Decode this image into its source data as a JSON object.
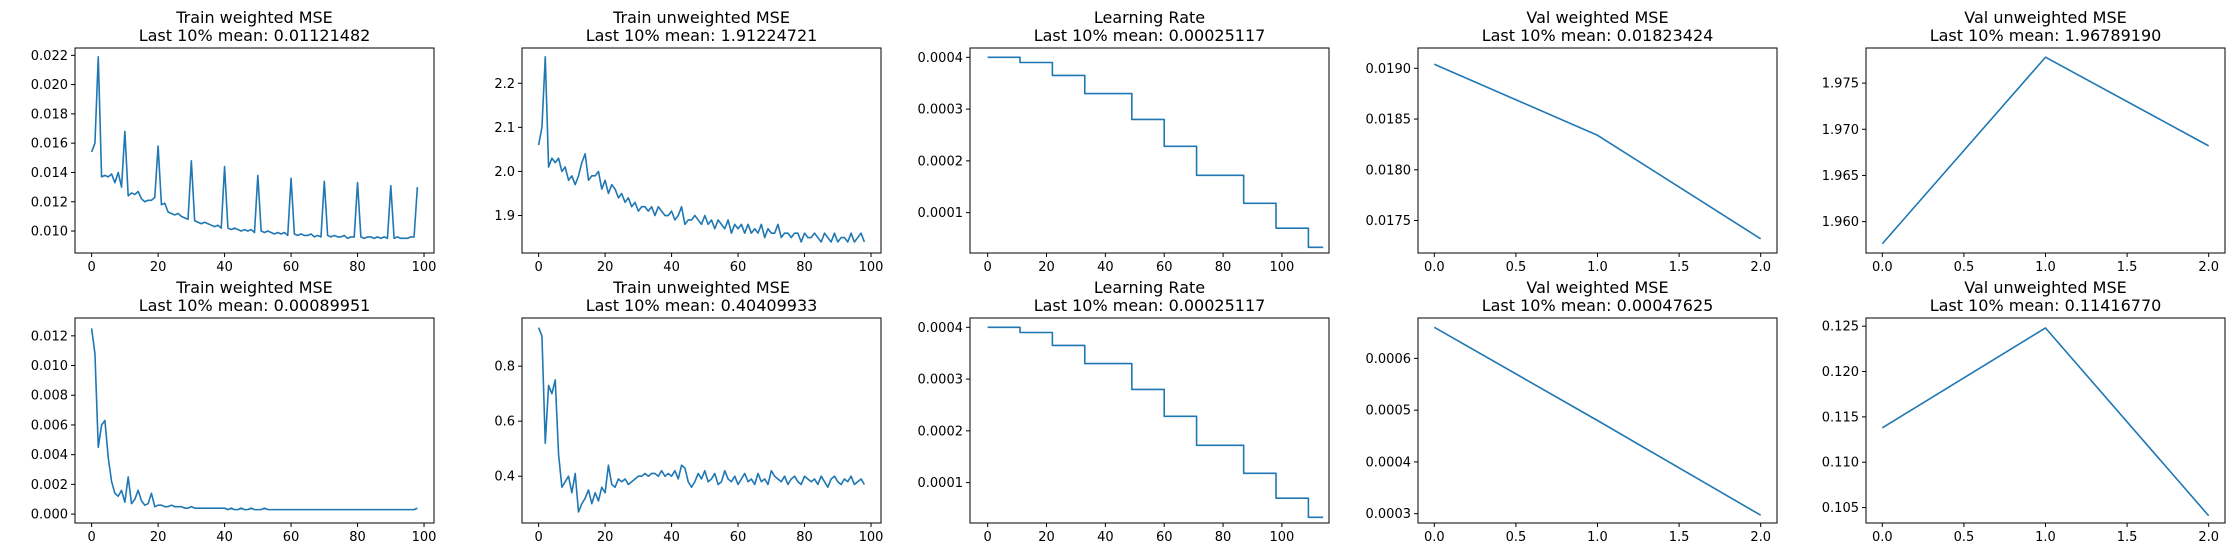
{
  "figure": {
    "line_color": "#1f77b4"
  },
  "chart_data": [
    {
      "type": "line",
      "title": "Train weighted MSE",
      "subtitle": "Last 10% mean: 0.01121482",
      "xlim": [
        -5,
        103
      ],
      "ylim": [
        0.0085,
        0.0225
      ],
      "xticks": [
        0,
        20,
        40,
        60,
        80,
        100
      ],
      "xtick_labels": [
        "0",
        "20",
        "40",
        "60",
        "80",
        "100"
      ],
      "yticks": [
        0.01,
        0.012,
        0.014,
        0.016,
        0.018,
        0.02,
        0.022
      ],
      "ytick_labels": [
        "0.010",
        "0.012",
        "0.014",
        "0.016",
        "0.018",
        "0.020",
        "0.022"
      ],
      "x": [
        0,
        1,
        2,
        3,
        4,
        5,
        6,
        7,
        8,
        9,
        10,
        11,
        12,
        13,
        14,
        15,
        16,
        17,
        18,
        19,
        20,
        21,
        22,
        23,
        24,
        25,
        26,
        27,
        28,
        29,
        30,
        31,
        32,
        33,
        34,
        35,
        36,
        37,
        38,
        39,
        40,
        41,
        42,
        43,
        44,
        45,
        46,
        47,
        48,
        49,
        50,
        51,
        52,
        53,
        54,
        55,
        56,
        57,
        58,
        59,
        60,
        61,
        62,
        63,
        64,
        65,
        66,
        67,
        68,
        69,
        70,
        71,
        72,
        73,
        74,
        75,
        76,
        77,
        78,
        79,
        80,
        81,
        82,
        83,
        84,
        85,
        86,
        87,
        88,
        89,
        90,
        91,
        92,
        93,
        94,
        95,
        96,
        97,
        98
      ],
      "y": [
        0.0154,
        0.016,
        0.0219,
        0.0137,
        0.0138,
        0.0137,
        0.0139,
        0.0133,
        0.014,
        0.013,
        0.0168,
        0.0124,
        0.0126,
        0.0125,
        0.0127,
        0.0122,
        0.012,
        0.0121,
        0.0121,
        0.0123,
        0.0158,
        0.0118,
        0.0119,
        0.0113,
        0.0112,
        0.0111,
        0.0112,
        0.011,
        0.0109,
        0.0108,
        0.0148,
        0.0107,
        0.0106,
        0.0105,
        0.0106,
        0.0105,
        0.0104,
        0.0103,
        0.0104,
        0.0102,
        0.0144,
        0.0102,
        0.0101,
        0.0102,
        0.0101,
        0.01,
        0.0101,
        0.01,
        0.0101,
        0.0099,
        0.0138,
        0.01,
        0.0099,
        0.01,
        0.0099,
        0.0098,
        0.0099,
        0.0098,
        0.0099,
        0.0097,
        0.0136,
        0.0098,
        0.0097,
        0.0098,
        0.0097,
        0.0097,
        0.0098,
        0.0096,
        0.0097,
        0.0096,
        0.0134,
        0.0097,
        0.0096,
        0.0097,
        0.0096,
        0.0096,
        0.0097,
        0.0095,
        0.0096,
        0.0096,
        0.0133,
        0.0096,
        0.0095,
        0.0096,
        0.0096,
        0.0095,
        0.0096,
        0.0095,
        0.0096,
        0.0095,
        0.0131,
        0.0095,
        0.0096,
        0.0095,
        0.0095,
        0.0095,
        0.0096,
        0.0096,
        0.013
      ]
    },
    {
      "type": "line",
      "title": "Train unweighted MSE",
      "subtitle": "Last 10% mean: 1.91224721",
      "xlim": [
        -5,
        103
      ],
      "ylim": [
        1.815,
        2.28
      ],
      "xticks": [
        0,
        20,
        40,
        60,
        80,
        100
      ],
      "xtick_labels": [
        "0",
        "20",
        "40",
        "60",
        "80",
        "100"
      ],
      "yticks": [
        1.9,
        2.0,
        2.1,
        2.2
      ],
      "ytick_labels": [
        "1.9",
        "2.0",
        "2.1",
        "2.2"
      ],
      "x": [
        0,
        1,
        2,
        3,
        4,
        5,
        6,
        7,
        8,
        9,
        10,
        11,
        12,
        13,
        14,
        15,
        16,
        17,
        18,
        19,
        20,
        21,
        22,
        23,
        24,
        25,
        26,
        27,
        28,
        29,
        30,
        31,
        32,
        33,
        34,
        35,
        36,
        37,
        38,
        39,
        40,
        41,
        42,
        43,
        44,
        45,
        46,
        47,
        48,
        49,
        50,
        51,
        52,
        53,
        54,
        55,
        56,
        57,
        58,
        59,
        60,
        61,
        62,
        63,
        64,
        65,
        66,
        67,
        68,
        69,
        70,
        71,
        72,
        73,
        74,
        75,
        76,
        77,
        78,
        79,
        80,
        81,
        82,
        83,
        84,
        85,
        86,
        87,
        88,
        89,
        90,
        91,
        92,
        93,
        94,
        95,
        96,
        97,
        98
      ],
      "y": [
        2.06,
        2.1,
        2.26,
        2.01,
        2.03,
        2.02,
        2.03,
        2.0,
        2.01,
        1.98,
        1.99,
        1.97,
        1.99,
        2.02,
        2.04,
        1.98,
        1.99,
        1.99,
        2.0,
        1.96,
        1.98,
        1.95,
        1.97,
        1.96,
        1.94,
        1.95,
        1.93,
        1.94,
        1.92,
        1.93,
        1.91,
        1.92,
        1.92,
        1.91,
        1.92,
        1.9,
        1.92,
        1.91,
        1.9,
        1.9,
        1.91,
        1.89,
        1.9,
        1.92,
        1.88,
        1.89,
        1.89,
        1.9,
        1.89,
        1.88,
        1.9,
        1.88,
        1.89,
        1.87,
        1.89,
        1.88,
        1.87,
        1.89,
        1.86,
        1.88,
        1.87,
        1.88,
        1.86,
        1.88,
        1.86,
        1.87,
        1.86,
        1.88,
        1.85,
        1.87,
        1.86,
        1.86,
        1.88,
        1.85,
        1.86,
        1.86,
        1.85,
        1.86,
        1.86,
        1.84,
        1.86,
        1.85,
        1.85,
        1.86,
        1.85,
        1.84,
        1.86,
        1.85,
        1.84,
        1.86,
        1.84,
        1.85,
        1.85,
        1.84,
        1.86,
        1.84,
        1.85,
        1.86,
        1.84
      ]
    },
    {
      "type": "line",
      "title": "Learning Rate",
      "subtitle": "Last 10% mean: 0.00025117",
      "xlim": [
        -6,
        116
      ],
      "ylim": [
        2.2e-05,
        0.000418
      ],
      "xticks": [
        0,
        20,
        40,
        60,
        80,
        100
      ],
      "xtick_labels": [
        "0",
        "20",
        "40",
        "60",
        "80",
        "100"
      ],
      "yticks": [
        0.0001,
        0.0002,
        0.0003,
        0.0004
      ],
      "ytick_labels": [
        "0.0001",
        "0.0002",
        "0.0003",
        "0.0004"
      ],
      "x": [
        0,
        11,
        11,
        22,
        22,
        33,
        33,
        49,
        49,
        60,
        60,
        71,
        71,
        87,
        87,
        98,
        98,
        109,
        109,
        114
      ],
      "y": [
        0.0004,
        0.0004,
        0.00039,
        0.00039,
        0.000365,
        0.000365,
        0.00033,
        0.00033,
        0.00028,
        0.00028,
        0.000228,
        0.000228,
        0.000172,
        0.000172,
        0.000118,
        0.000118,
        7e-05,
        7e-05,
        3.3e-05,
        3.3e-05
      ]
    },
    {
      "type": "line",
      "title": "Val weighted MSE",
      "subtitle": "Last 10% mean: 0.01823424",
      "xlim": [
        -0.1,
        2.1
      ],
      "ylim": [
        0.01718,
        0.0192
      ],
      "xticks": [
        0.0,
        0.5,
        1.0,
        1.5,
        2.0
      ],
      "xtick_labels": [
        "0.0",
        "0.5",
        "1.0",
        "1.5",
        "2.0"
      ],
      "yticks": [
        0.0175,
        0.018,
        0.0185,
        0.019
      ],
      "ytick_labels": [
        "0.0175",
        "0.0180",
        "0.0185",
        "0.0190"
      ],
      "x": [
        0,
        1,
        2
      ],
      "y": [
        0.01904,
        0.01834,
        0.01732
      ]
    },
    {
      "type": "line",
      "title": "Val unweighted MSE",
      "subtitle": "Last 10% mean: 1.96789190",
      "xlim": [
        -0.1,
        2.1
      ],
      "ylim": [
        1.9566,
        1.9788
      ],
      "xticks": [
        0.0,
        0.5,
        1.0,
        1.5,
        2.0
      ],
      "xtick_labels": [
        "0.0",
        "0.5",
        "1.0",
        "1.5",
        "2.0"
      ],
      "yticks": [
        1.96,
        1.965,
        1.97,
        1.975
      ],
      "ytick_labels": [
        "1.960",
        "1.965",
        "1.970",
        "1.975"
      ],
      "x": [
        0,
        1,
        2
      ],
      "y": [
        1.9576,
        1.9778,
        1.9682
      ]
    },
    {
      "type": "line",
      "title": "Train weighted MSE",
      "subtitle": "Last 10% mean: 0.00089951",
      "xlim": [
        -5,
        103
      ],
      "ylim": [
        -0.0006,
        0.0132
      ],
      "xticks": [
        0,
        20,
        40,
        60,
        80,
        100
      ],
      "xtick_labels": [
        "0",
        "20",
        "40",
        "60",
        "80",
        "100"
      ],
      "yticks": [
        0.0,
        0.002,
        0.004,
        0.006,
        0.008,
        0.01,
        0.012
      ],
      "ytick_labels": [
        "0.000",
        "0.002",
        "0.004",
        "0.006",
        "0.008",
        "0.010",
        "0.012"
      ],
      "x": [
        0,
        1,
        2,
        3,
        4,
        5,
        6,
        7,
        8,
        9,
        10,
        11,
        12,
        13,
        14,
        15,
        16,
        17,
        18,
        19,
        20,
        21,
        22,
        23,
        24,
        25,
        26,
        27,
        28,
        29,
        30,
        31,
        32,
        33,
        34,
        35,
        36,
        37,
        38,
        39,
        40,
        41,
        42,
        43,
        44,
        45,
        46,
        47,
        48,
        49,
        50,
        51,
        52,
        53,
        54,
        55,
        56,
        57,
        58,
        59,
        60,
        61,
        62,
        63,
        64,
        65,
        66,
        67,
        68,
        69,
        70,
        71,
        72,
        73,
        74,
        75,
        76,
        77,
        78,
        79,
        80,
        81,
        82,
        83,
        84,
        85,
        86,
        87,
        88,
        89,
        90,
        91,
        92,
        93,
        94,
        95,
        96,
        97,
        98
      ],
      "y": [
        0.0125,
        0.0108,
        0.0045,
        0.006,
        0.0063,
        0.0038,
        0.0022,
        0.0014,
        0.0012,
        0.0016,
        0.0008,
        0.0025,
        0.0007,
        0.001,
        0.0016,
        0.0009,
        0.0006,
        0.0007,
        0.0014,
        0.0005,
        0.0006,
        0.0006,
        0.0005,
        0.0005,
        0.0006,
        0.0005,
        0.0005,
        0.0005,
        0.0004,
        0.0004,
        0.0005,
        0.0004,
        0.0004,
        0.0004,
        0.0004,
        0.0004,
        0.0004,
        0.0004,
        0.0004,
        0.0004,
        0.0004,
        0.0003,
        0.0004,
        0.0003,
        0.0003,
        0.0004,
        0.0003,
        0.0003,
        0.0004,
        0.0003,
        0.0003,
        0.0003,
        0.0004,
        0.0003,
        0.0003,
        0.0003,
        0.0003,
        0.0003,
        0.0003,
        0.0003,
        0.0003,
        0.0003,
        0.0003,
        0.0003,
        0.0003,
        0.0003,
        0.0003,
        0.0003,
        0.0003,
        0.0003,
        0.0003,
        0.0003,
        0.0003,
        0.0003,
        0.0003,
        0.0003,
        0.0003,
        0.0003,
        0.0003,
        0.0003,
        0.0003,
        0.0003,
        0.0003,
        0.0003,
        0.0003,
        0.0003,
        0.0003,
        0.0003,
        0.0003,
        0.0003,
        0.0003,
        0.0003,
        0.0003,
        0.0003,
        0.0003,
        0.0003,
        0.0003,
        0.0003,
        0.0004
      ]
    },
    {
      "type": "line",
      "title": "Train unweighted MSE",
      "subtitle": "Last 10% mean: 0.40409933",
      "xlim": [
        -5,
        103
      ],
      "ylim": [
        0.23,
        0.975
      ],
      "xticks": [
        0,
        20,
        40,
        60,
        80,
        100
      ],
      "xtick_labels": [
        "0",
        "20",
        "40",
        "60",
        "80",
        "100"
      ],
      "yticks": [
        0.4,
        0.6,
        0.8
      ],
      "ytick_labels": [
        "0.4",
        "0.6",
        "0.8"
      ],
      "x": [
        0,
        1,
        2,
        3,
        4,
        5,
        6,
        7,
        8,
        9,
        10,
        11,
        12,
        13,
        14,
        15,
        16,
        17,
        18,
        19,
        20,
        21,
        22,
        23,
        24,
        25,
        26,
        27,
        28,
        29,
        30,
        31,
        32,
        33,
        34,
        35,
        36,
        37,
        38,
        39,
        40,
        41,
        42,
        43,
        44,
        45,
        46,
        47,
        48,
        49,
        50,
        51,
        52,
        53,
        54,
        55,
        56,
        57,
        58,
        59,
        60,
        61,
        62,
        63,
        64,
        65,
        66,
        67,
        68,
        69,
        70,
        71,
        72,
        73,
        74,
        75,
        76,
        77,
        78,
        79,
        80,
        81,
        82,
        83,
        84,
        85,
        86,
        87,
        88,
        89,
        90,
        91,
        92,
        93,
        94,
        95,
        96,
        97,
        98
      ],
      "y": [
        0.94,
        0.91,
        0.52,
        0.73,
        0.7,
        0.75,
        0.48,
        0.36,
        0.38,
        0.4,
        0.34,
        0.41,
        0.27,
        0.3,
        0.32,
        0.35,
        0.3,
        0.34,
        0.31,
        0.36,
        0.34,
        0.44,
        0.37,
        0.36,
        0.39,
        0.38,
        0.39,
        0.37,
        0.38,
        0.39,
        0.4,
        0.4,
        0.41,
        0.4,
        0.41,
        0.41,
        0.4,
        0.42,
        0.4,
        0.41,
        0.4,
        0.42,
        0.39,
        0.44,
        0.43,
        0.38,
        0.36,
        0.38,
        0.41,
        0.39,
        0.42,
        0.38,
        0.39,
        0.41,
        0.37,
        0.38,
        0.42,
        0.39,
        0.38,
        0.4,
        0.37,
        0.39,
        0.41,
        0.38,
        0.39,
        0.37,
        0.41,
        0.38,
        0.39,
        0.37,
        0.42,
        0.4,
        0.39,
        0.38,
        0.4,
        0.37,
        0.39,
        0.4,
        0.38,
        0.37,
        0.4,
        0.39,
        0.38,
        0.39,
        0.37,
        0.4,
        0.38,
        0.36,
        0.39,
        0.4,
        0.38,
        0.37,
        0.39,
        0.38,
        0.4,
        0.37,
        0.38,
        0.39,
        0.37
      ]
    },
    {
      "type": "line",
      "title": "Learning Rate",
      "subtitle": "Last 10% mean: 0.00025117",
      "xlim": [
        -6,
        116
      ],
      "ylim": [
        2.2e-05,
        0.000418
      ],
      "xticks": [
        0,
        20,
        40,
        60,
        80,
        100
      ],
      "xtick_labels": [
        "0",
        "20",
        "40",
        "60",
        "80",
        "100"
      ],
      "yticks": [
        0.0001,
        0.0002,
        0.0003,
        0.0004
      ],
      "ytick_labels": [
        "0.0001",
        "0.0002",
        "0.0003",
        "0.0004"
      ],
      "x": [
        0,
        11,
        11,
        22,
        22,
        33,
        33,
        49,
        49,
        60,
        60,
        71,
        71,
        87,
        87,
        98,
        98,
        109,
        109,
        114
      ],
      "y": [
        0.0004,
        0.0004,
        0.00039,
        0.00039,
        0.000365,
        0.000365,
        0.00033,
        0.00033,
        0.00028,
        0.00028,
        0.000228,
        0.000228,
        0.000172,
        0.000172,
        0.000118,
        0.000118,
        7e-05,
        7e-05,
        3.3e-05,
        3.3e-05
      ]
    },
    {
      "type": "line",
      "title": "Val weighted MSE",
      "subtitle": "Last 10% mean: 0.00047625",
      "xlim": [
        -0.1,
        2.1
      ],
      "ylim": [
        0.000282,
        0.000678
      ],
      "xticks": [
        0.0,
        0.5,
        1.0,
        1.5,
        2.0
      ],
      "xtick_labels": [
        "0.0",
        "0.5",
        "1.0",
        "1.5",
        "2.0"
      ],
      "yticks": [
        0.0003,
        0.0004,
        0.0005,
        0.0006
      ],
      "ytick_labels": [
        "0.0003",
        "0.0004",
        "0.0005",
        "0.0006"
      ],
      "x": [
        0,
        1,
        2
      ],
      "y": [
        0.00066,
        0.00048,
        0.000297
      ]
    },
    {
      "type": "line",
      "title": "Val unweighted MSE",
      "subtitle": "Last 10% mean: 0.11416770",
      "xlim": [
        -0.1,
        2.1
      ],
      "ylim": [
        0.1033,
        0.1259
      ],
      "xticks": [
        0.0,
        0.5,
        1.0,
        1.5,
        2.0
      ],
      "xtick_labels": [
        "0.0",
        "0.5",
        "1.0",
        "1.5",
        "2.0"
      ],
      "yticks": [
        0.105,
        0.11,
        0.115,
        0.12,
        0.125
      ],
      "ytick_labels": [
        "0.105",
        "0.110",
        "0.115",
        "0.120",
        "0.125"
      ],
      "x": [
        0,
        1,
        2
      ],
      "y": [
        0.1138,
        0.1248,
        0.1041
      ]
    }
  ]
}
